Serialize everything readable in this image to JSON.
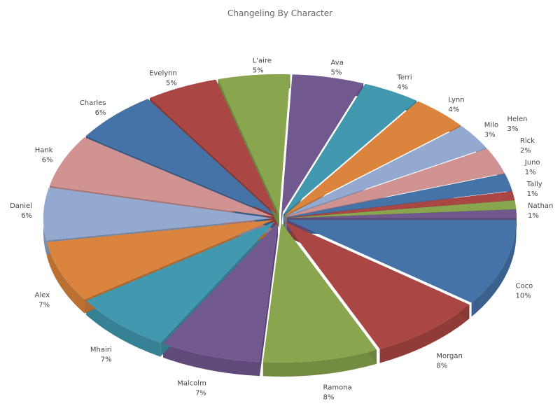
{
  "chart_data": {
    "type": "pie",
    "variant": "3d-exploded",
    "title": "Changeling By Character",
    "label_format": "{name}\n{percent}%",
    "colors": [
      "#4572A7",
      "#AA4643",
      "#89A54E",
      "#71588F",
      "#4198AF",
      "#DB843D",
      "#93A9CF",
      "#D19392"
    ],
    "slices": [
      {
        "name": "Coco",
        "value": 10
      },
      {
        "name": "Morgan",
        "value": 8
      },
      {
        "name": "Ramona",
        "value": 8
      },
      {
        "name": "Malcolm",
        "value": 7
      },
      {
        "name": "Mhairi",
        "value": 7
      },
      {
        "name": "Alex",
        "value": 7
      },
      {
        "name": "Daniel",
        "value": 6
      },
      {
        "name": "Hank",
        "value": 6
      },
      {
        "name": "Charles",
        "value": 6
      },
      {
        "name": "Evelynn",
        "value": 5
      },
      {
        "name": "L'aire",
        "value": 5
      },
      {
        "name": "Ava",
        "value": 5
      },
      {
        "name": "Terri",
        "value": 4
      },
      {
        "name": "Lynn",
        "value": 4
      },
      {
        "name": "Milo",
        "value": 3
      },
      {
        "name": "Helen",
        "value": 3
      },
      {
        "name": "Rick",
        "value": 2
      },
      {
        "name": "Juno",
        "value": 1
      },
      {
        "name": "Tally",
        "value": 1
      },
      {
        "name": "Nathan",
        "value": 1
      }
    ]
  }
}
